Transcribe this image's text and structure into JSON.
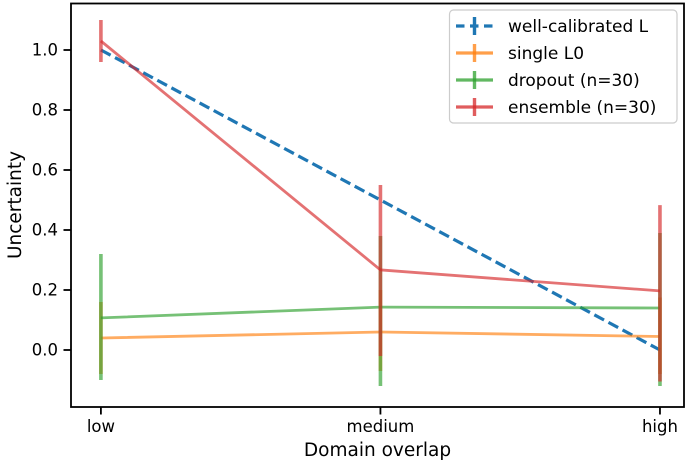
{
  "chart_data": {
    "type": "line",
    "title": "",
    "xlabel": "Domain overlap",
    "ylabel": "Uncertainty",
    "categories": [
      "low",
      "medium",
      "high"
    ],
    "yticks": [
      0.0,
      0.2,
      0.4,
      0.6,
      0.8,
      1.0
    ],
    "ylim": [
      -0.19,
      1.155
    ],
    "grid": false,
    "legend_position": "upper right",
    "series": [
      {
        "name": "well-calibrated L",
        "color": "#1f77b4",
        "alpha": 1.0,
        "style": "dashed",
        "values": [
          1.0,
          0.5,
          0.0
        ],
        "error_low": [
          1.0,
          0.5,
          0.0
        ],
        "error_high": [
          1.0,
          0.5,
          0.0
        ]
      },
      {
        "name": "single L0",
        "color": "#ff7f0e",
        "alpha": 0.65,
        "style": "solid",
        "values": [
          0.04,
          0.06,
          0.045
        ],
        "error_low": [
          -0.08,
          -0.07,
          -0.08
        ],
        "error_high": [
          0.16,
          0.2,
          0.175
        ]
      },
      {
        "name": "dropout (n=30)",
        "color": "#2ca02c",
        "alpha": 0.65,
        "style": "solid",
        "values": [
          0.107,
          0.143,
          0.14
        ],
        "error_low": [
          -0.1,
          -0.12,
          -0.12
        ],
        "error_high": [
          0.32,
          0.38,
          0.39
        ]
      },
      {
        "name": "ensemble (n=30)",
        "color": "#d62728",
        "alpha": 0.65,
        "style": "solid",
        "values": [
          1.03,
          0.267,
          0.197
        ],
        "error_low": [
          0.96,
          -0.02,
          -0.105
        ],
        "error_high": [
          1.1,
          0.55,
          0.483
        ]
      }
    ]
  }
}
